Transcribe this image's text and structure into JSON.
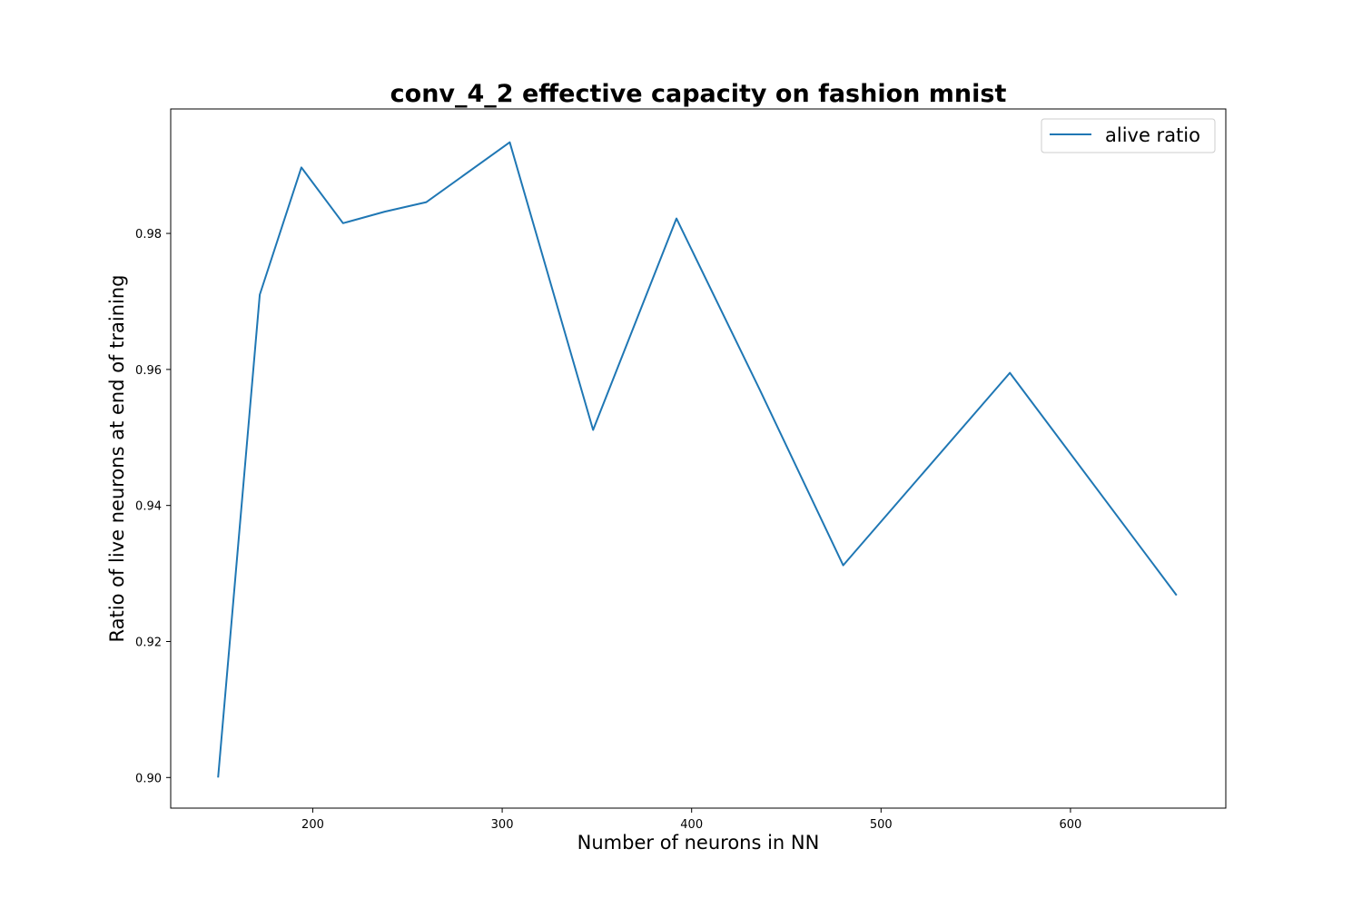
{
  "chart_data": {
    "type": "line",
    "title": "conv_4_2 effective capacity on fashion mnist",
    "xlabel": "Number of neurons in NN",
    "ylabel": "Ratio of live neurons at end of training",
    "xlim": [
      125,
      682
    ],
    "ylim": [
      0.8955,
      0.9983
    ],
    "xticks": [
      200,
      300,
      400,
      500,
      600
    ],
    "yticks": [
      0.9,
      0.92,
      0.94,
      0.96,
      0.98
    ],
    "grid": false,
    "legend_position": "top-right",
    "series": [
      {
        "name": "alive ratio",
        "color": "#1f77b4",
        "x": [
          150,
          172,
          194,
          216,
          238,
          260,
          304,
          348,
          392,
          436,
          480,
          568,
          656
        ],
        "y": [
          0.9,
          0.971,
          0.9897,
          0.9815,
          0.9832,
          0.9846,
          0.9934,
          0.9511,
          0.9822,
          0.957,
          0.9312,
          0.9595,
          0.9268
        ]
      }
    ]
  }
}
